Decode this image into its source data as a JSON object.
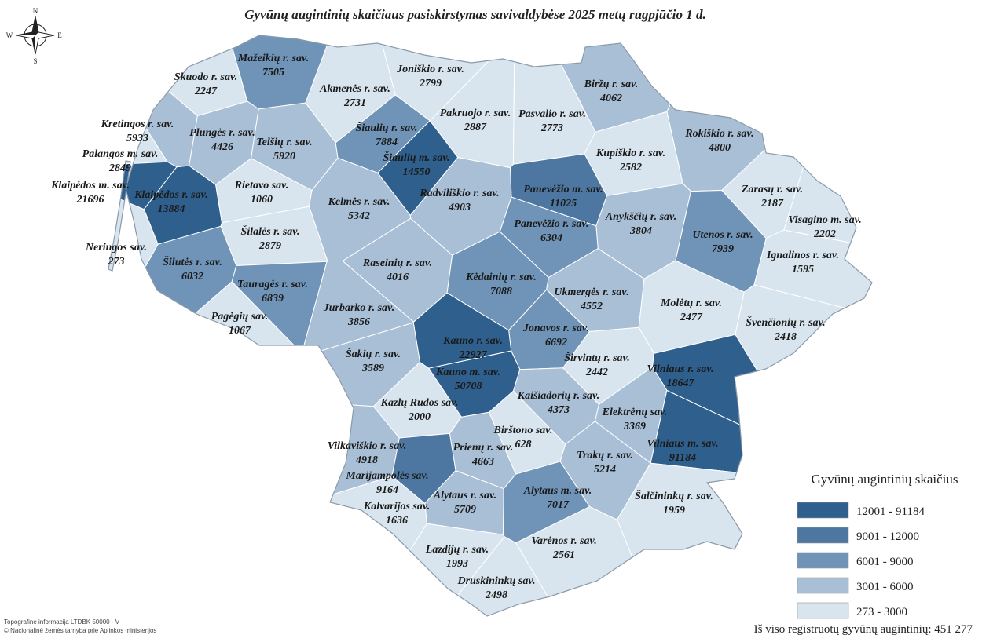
{
  "title": "Gyvūnų augintinių skaičiaus pasiskirstymas savivaldybėse 2025 metų rugpjūčio 1 d.",
  "compass": {
    "n": "N",
    "s": "S",
    "w": "W",
    "e": "E"
  },
  "municipalities": [
    {
      "name": "Skuodo r. sav.",
      "value": 2247,
      "color": "#d8e5ee"
    },
    {
      "name": "Mažeikių r. sav.",
      "value": 7505,
      "color": "#7094b8"
    },
    {
      "name": "Akmenės r. sav.",
      "value": 2731,
      "color": "#d8e5ee"
    },
    {
      "name": "Joniškio r. sav.",
      "value": 2799,
      "color": "#d8e5ee"
    },
    {
      "name": "Biržų r. sav.",
      "value": 4062,
      "color": "#a9bfd6"
    },
    {
      "name": "Kretingos r. sav.",
      "value": 5933,
      "color": "#a9bfd6"
    },
    {
      "name": "Plungės r. sav.",
      "value": 4426,
      "color": "#a9bfd6"
    },
    {
      "name": "Telšių r. sav.",
      "value": 5920,
      "color": "#a9bfd6"
    },
    {
      "name": "Šiaulių r. sav.",
      "value": 7884,
      "color": "#7094b8"
    },
    {
      "name": "Pakruojo r. sav.",
      "value": 2887,
      "color": "#d8e5ee"
    },
    {
      "name": "Pasvalio r. sav.",
      "value": 2773,
      "color": "#d8e5ee"
    },
    {
      "name": "Rokiškio r. sav.",
      "value": 4800,
      "color": "#a9bfd6"
    },
    {
      "name": "Palangos m. sav.",
      "value": 2849,
      "color": "#d8e5ee"
    },
    {
      "name": "Šiaulių m. sav.",
      "value": 14550,
      "color": "#2f5f8c"
    },
    {
      "name": "Kupiškio r. sav.",
      "value": 2582,
      "color": "#d8e5ee"
    },
    {
      "name": "Klaipėdos m. sav.",
      "value": 21696,
      "color": "#2f5f8c"
    },
    {
      "name": "Klaipėdos r. sav.",
      "value": 13884,
      "color": "#2f5f8c"
    },
    {
      "name": "Rietavo sav.",
      "value": 1060,
      "color": "#d8e5ee"
    },
    {
      "name": "Kelmės r. sav.",
      "value": 5342,
      "color": "#a9bfd6"
    },
    {
      "name": "Radviliškio r. sav.",
      "value": 4903,
      "color": "#a9bfd6"
    },
    {
      "name": "Panevėžio m. sav.",
      "value": 11025,
      "color": "#4d77a0"
    },
    {
      "name": "Zarasų r. sav.",
      "value": 2187,
      "color": "#d8e5ee"
    },
    {
      "name": "Visagino m. sav.",
      "value": 2202,
      "color": "#d8e5ee"
    },
    {
      "name": "Anykščių r. sav.",
      "value": 3804,
      "color": "#a9bfd6"
    },
    {
      "name": "Panevėžio r. sav.",
      "value": 6304,
      "color": "#7094b8"
    },
    {
      "name": "Šilalės r. sav.",
      "value": 2879,
      "color": "#d8e5ee"
    },
    {
      "name": "Utenos r. sav.",
      "value": 7939,
      "color": "#7094b8"
    },
    {
      "name": "Neringos sav.",
      "value": 273,
      "color": "#d8e5ee"
    },
    {
      "name": "Ignalinos r. sav.",
      "value": 1595,
      "color": "#d8e5ee"
    },
    {
      "name": "Šilutės r. sav.",
      "value": 6032,
      "color": "#7094b8"
    },
    {
      "name": "Raseinių r. sav.",
      "value": 4016,
      "color": "#a9bfd6"
    },
    {
      "name": "Kėdainių r. sav.",
      "value": 7088,
      "color": "#7094b8"
    },
    {
      "name": "Tauragės r. sav.",
      "value": 6839,
      "color": "#7094b8"
    },
    {
      "name": "Ukmergės r. sav.",
      "value": 4552,
      "color": "#a9bfd6"
    },
    {
      "name": "Molėtų r. sav.",
      "value": 2477,
      "color": "#d8e5ee"
    },
    {
      "name": "Jurbarko r. sav.",
      "value": 3856,
      "color": "#a9bfd6"
    },
    {
      "name": "Pagėgių sav.",
      "value": 1067,
      "color": "#d8e5ee"
    },
    {
      "name": "Švenčionių r. sav.",
      "value": 2418,
      "color": "#d8e5ee"
    },
    {
      "name": "Jonavos r. sav.",
      "value": 6692,
      "color": "#7094b8"
    },
    {
      "name": "Kauno r. sav.",
      "value": 22927,
      "color": "#2f5f8c"
    },
    {
      "name": "Šakių r. sav.",
      "value": 3589,
      "color": "#a9bfd6"
    },
    {
      "name": "Širvintų r. sav.",
      "value": 2442,
      "color": "#d8e5ee"
    },
    {
      "name": "Vilniaus r. sav.",
      "value": 18647,
      "color": "#2f5f8c"
    },
    {
      "name": "Kauno m. sav.",
      "value": 50708,
      "color": "#2f5f8c"
    },
    {
      "name": "Kaišiadorių r. sav.",
      "value": 4373,
      "color": "#a9bfd6"
    },
    {
      "name": "Kazlų Rūdos sav.",
      "value": 2000,
      "color": "#d8e5ee"
    },
    {
      "name": "Elektrėnų sav.",
      "value": 3369,
      "color": "#a9bfd6"
    },
    {
      "name": "Birštono sav.",
      "value": 628,
      "color": "#d8e5ee"
    },
    {
      "name": "Vilkaviškio r. sav.",
      "value": 4918,
      "color": "#a9bfd6"
    },
    {
      "name": "Vilniaus m. sav.",
      "value": 91184,
      "color": "#2f5f8c"
    },
    {
      "name": "Prienų r. sav.",
      "value": 4663,
      "color": "#a9bfd6"
    },
    {
      "name": "Trakų r. sav.",
      "value": 5214,
      "color": "#a9bfd6"
    },
    {
      "name": "Marijampolės sav.",
      "value": 9164,
      "color": "#4d77a0"
    },
    {
      "name": "Alytaus r. sav.",
      "value": 5709,
      "color": "#a9bfd6"
    },
    {
      "name": "Alytaus m. sav.",
      "value": 7017,
      "color": "#7094b8"
    },
    {
      "name": "Šalčininkų r. sav.",
      "value": 1959,
      "color": "#d8e5ee"
    },
    {
      "name": "Kalvarijos sav.",
      "value": 1636,
      "color": "#d8e5ee"
    },
    {
      "name": "Lazdijų r. sav.",
      "value": 1993,
      "color": "#d8e5ee"
    },
    {
      "name": "Varėnos r. sav.",
      "value": 2561,
      "color": "#d8e5ee"
    },
    {
      "name": "Druskininkų sav.",
      "value": 2498,
      "color": "#d8e5ee"
    }
  ],
  "legend": {
    "title": "Gyvūnų augintinių skaičius",
    "items": [
      {
        "label": "12001 - 91184",
        "color": "#2f5f8c"
      },
      {
        "label": "9001 - 12000",
        "color": "#4d77a0"
      },
      {
        "label": "6001 - 9000",
        "color": "#7094b8"
      },
      {
        "label": "3001 - 6000",
        "color": "#a9bfd6"
      },
      {
        "label": "273 - 3000",
        "color": "#d8e5ee"
      }
    ]
  },
  "credits": [
    "Topografinė informacija LTDBK 50000 - V",
    "© Nacionalinė žemės tarnyba prie Aplinkos ministerijos"
  ],
  "total": "Iš viso registruotų gyvūnų augintinių: 451 277"
}
